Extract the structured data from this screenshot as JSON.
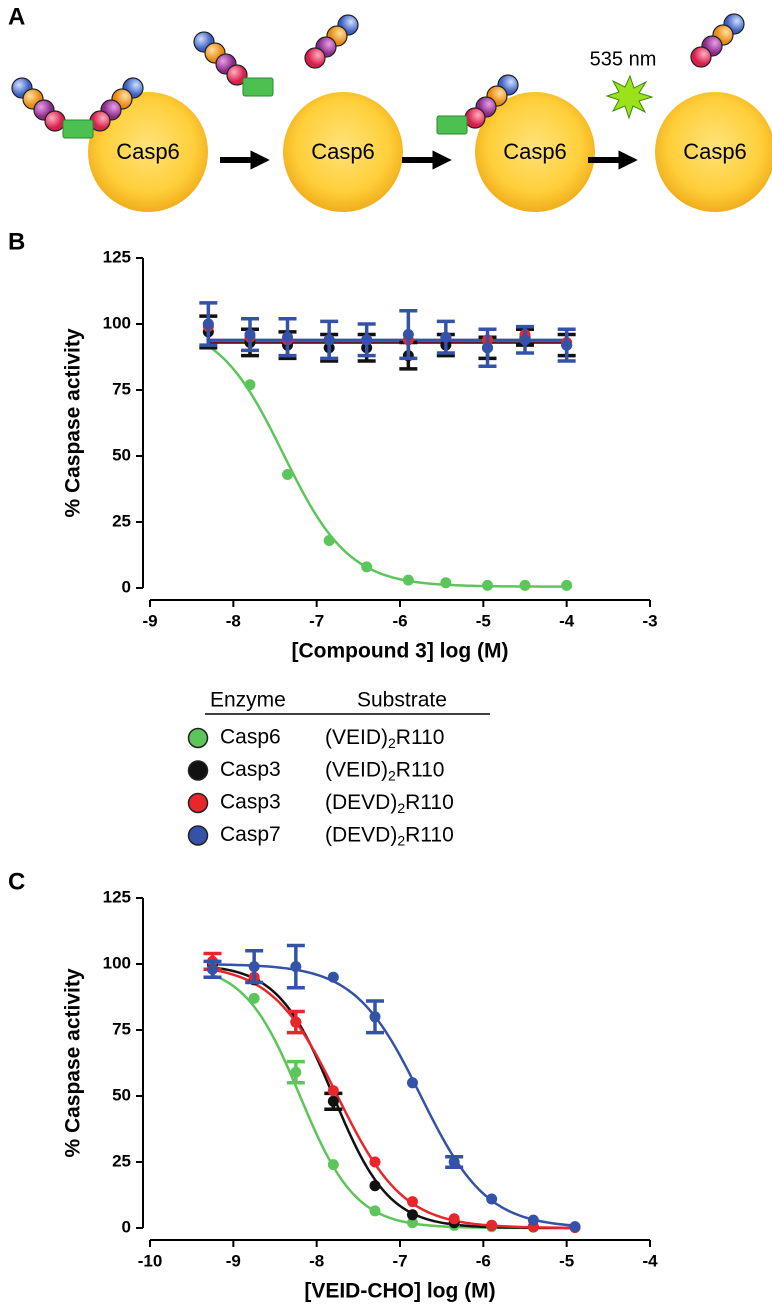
{
  "figure": {
    "panel_a": {
      "label": "A",
      "enzyme_labels": [
        "Casp6",
        "Casp6",
        "Casp6",
        "Casp6"
      ],
      "wavelength": "535 nm"
    },
    "legend": {
      "headers": [
        "Enzyme",
        "Substrate"
      ],
      "entries": [
        {
          "enzyme": "Casp6",
          "color": "#5cc65a",
          "substrate": {
            "main": "(VEID)",
            "sub": "2",
            "rest": "R110"
          }
        },
        {
          "enzyme": "Casp3",
          "color": "#111111",
          "substrate": {
            "main": "(VEID)",
            "sub": "2",
            "rest": "R110"
          }
        },
        {
          "enzyme": "Casp3",
          "color": "#e8262c",
          "substrate": {
            "main": "(DEVD)",
            "sub": "2",
            "rest": "R110"
          }
        },
        {
          "enzyme": "Casp7",
          "color": "#3452a8",
          "substrate": {
            "main": "(DEVD)",
            "sub": "2",
            "rest": "R110"
          }
        }
      ]
    }
  },
  "chart_data": [
    {
      "type": "scatter",
      "panel_label": "B",
      "xlabel": "[Compound 3] log (M)",
      "ylabel": "% Caspase activity",
      "xlim": [
        -9,
        -3
      ],
      "xticks": [
        -9,
        -8,
        -7,
        -6,
        -5,
        -4,
        -3
      ],
      "ylim": [
        0,
        125
      ],
      "yticks": [
        0,
        25,
        50,
        75,
        100,
        125
      ],
      "x": [
        -8.3,
        -7.8,
        -7.35,
        -6.85,
        -6.4,
        -5.9,
        -5.45,
        -4.95,
        -4.5,
        -4.0
      ],
      "series": [
        {
          "color": "#5cc65a",
          "values": [
            100,
            77,
            43,
            18,
            8,
            3,
            2,
            1,
            1,
            1
          ],
          "fit": {
            "bottom": 0.5,
            "top": 101,
            "log_ic50": -7.4,
            "hill": 1.1
          }
        },
        {
          "color": "#111111",
          "values": [
            97,
            93,
            92,
            91,
            91,
            88,
            92,
            91,
            95,
            92
          ],
          "errors": [
            6,
            5,
            5,
            5,
            5,
            5,
            4,
            4,
            3,
            4
          ],
          "fit": {
            "top": 93
          }
        },
        {
          "color": "#e8262c",
          "values": [
            99,
            95,
            94,
            94,
            94,
            94,
            95,
            94,
            96,
            93
          ],
          "fit": {
            "top": 93.5
          }
        },
        {
          "color": "#3452a8",
          "values": [
            100,
            96,
            95,
            94,
            94,
            96,
            95,
            91,
            94,
            92
          ],
          "errors": [
            8,
            6,
            7,
            7,
            6,
            9,
            6,
            7,
            5,
            6
          ],
          "fit": {
            "top": 94
          }
        }
      ]
    },
    {
      "type": "scatter",
      "panel_label": "C",
      "xlabel": "[VEID-CHO] log (M)",
      "ylabel": "% Caspase activity",
      "xlim": [
        -10,
        -4
      ],
      "xticks": [
        -10,
        -9,
        -8,
        -7,
        -6,
        -5,
        -4
      ],
      "ylim": [
        0,
        125
      ],
      "yticks": [
        0,
        25,
        50,
        75,
        100,
        125
      ],
      "x": [
        -9.25,
        -8.75,
        -8.25,
        -7.8,
        -7.3,
        -6.85,
        -6.35,
        -5.9,
        -5.4,
        -4.9
      ],
      "series": [
        {
          "color": "#5cc65a",
          "values": [
            99,
            87,
            59,
            24,
            6.5,
            2,
            1,
            0.5,
            0.3,
            0.2
          ],
          "errors": [
            null,
            null,
            4,
            null,
            null,
            null,
            null,
            null,
            null,
            null
          ],
          "fit": {
            "bottom": 0,
            "top": 100,
            "log_ic50": -8.2,
            "hill": 1.3
          }
        },
        {
          "color": "#111111",
          "values": [
            100,
            94,
            78,
            48,
            16,
            5,
            2,
            1,
            0.5,
            0.3
          ],
          "errors": [
            null,
            null,
            null,
            3,
            null,
            null,
            null,
            null,
            null,
            null
          ],
          "fit": {
            "bottom": 0,
            "top": 100,
            "log_ic50": -7.8,
            "hill": 1.3
          }
        },
        {
          "color": "#e8262c",
          "values": [
            101,
            95,
            78,
            52,
            25,
            10,
            3.5,
            1,
            0.5,
            0.2
          ],
          "errors": [
            3,
            null,
            4,
            null,
            null,
            null,
            null,
            null,
            null,
            null
          ],
          "fit": {
            "bottom": 0,
            "top": 100,
            "log_ic50": -7.75,
            "hill": 1.1
          }
        },
        {
          "color": "#3452a8",
          "values": [
            98,
            99,
            99,
            95,
            80,
            55,
            25,
            11,
            3,
            0.5
          ],
          "errors": [
            3,
            6,
            8,
            null,
            6,
            null,
            2,
            null,
            null,
            null
          ],
          "fit": {
            "bottom": 0,
            "top": 100,
            "log_ic50": -6.75,
            "hill": 1.1
          }
        }
      ]
    }
  ]
}
